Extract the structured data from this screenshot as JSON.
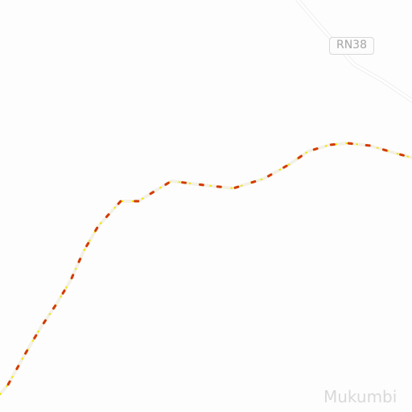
{
  "map": {
    "road_label": "RN38",
    "place_label": "Mukumbi",
    "colors": {
      "background": "#fdfdfd",
      "road_casing": "#efefef",
      "road_fill": "#ffffff",
      "route_base": "#f3f1e6",
      "route_traffic_light": "#f2e600",
      "route_traffic_heavy": "#d43a00"
    },
    "icons": [
      "road-shield-icon"
    ]
  }
}
